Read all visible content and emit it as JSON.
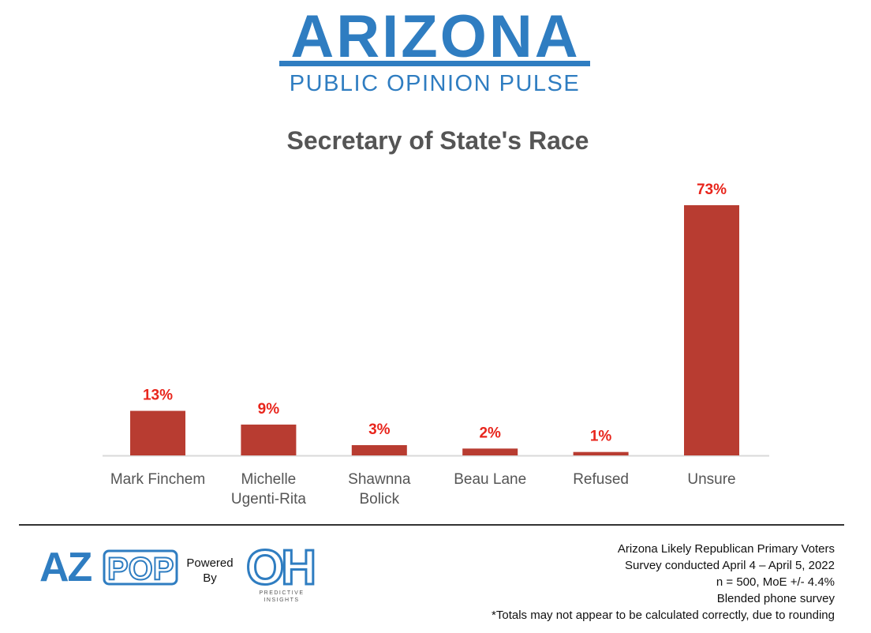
{
  "header": {
    "brand_title": "ARIZONA",
    "brand_subtitle": "PUBLIC OPINION PULSE"
  },
  "chart_data": {
    "type": "bar",
    "title": "Secretary of State's Race",
    "categories": [
      [
        "Mark Finchem"
      ],
      [
        "Michelle",
        "Ugenti-Rita"
      ],
      [
        "Shawnna",
        "Bolick"
      ],
      [
        "Beau Lane"
      ],
      [
        "Refused"
      ],
      [
        "Unsure"
      ]
    ],
    "values": [
      13,
      9,
      3,
      2,
      1,
      73
    ],
    "value_labels": [
      "13%",
      "9%",
      "3%",
      "2%",
      "1%",
      "73%"
    ],
    "xlabel": "",
    "ylabel": "",
    "ylim": [
      0,
      73
    ],
    "grid": false,
    "legend": "none",
    "colors": {
      "bar": "#b83c31",
      "value_label": "#e8251c",
      "category_label": "#555555",
      "baseline": "#d9d9d9"
    }
  },
  "footer": {
    "logo_text_az": "AZ",
    "logo_text_pop": "POP",
    "powered_line1": "Powered",
    "powered_line2": "By",
    "oh_logo_text": "OH",
    "oh_caption_line1": "PREDICTIVE",
    "oh_caption_line2": "INSIGHTS",
    "notes": [
      "Arizona Likely Republican Primary Voters",
      "Survey conducted April 4 – April 5, 2022",
      "n = 500, MoE +/- 4.4%",
      "Blended phone survey",
      "*Totals may not appear to be calculated correctly, due to rounding"
    ],
    "brand_color": "#2f7dc1"
  }
}
